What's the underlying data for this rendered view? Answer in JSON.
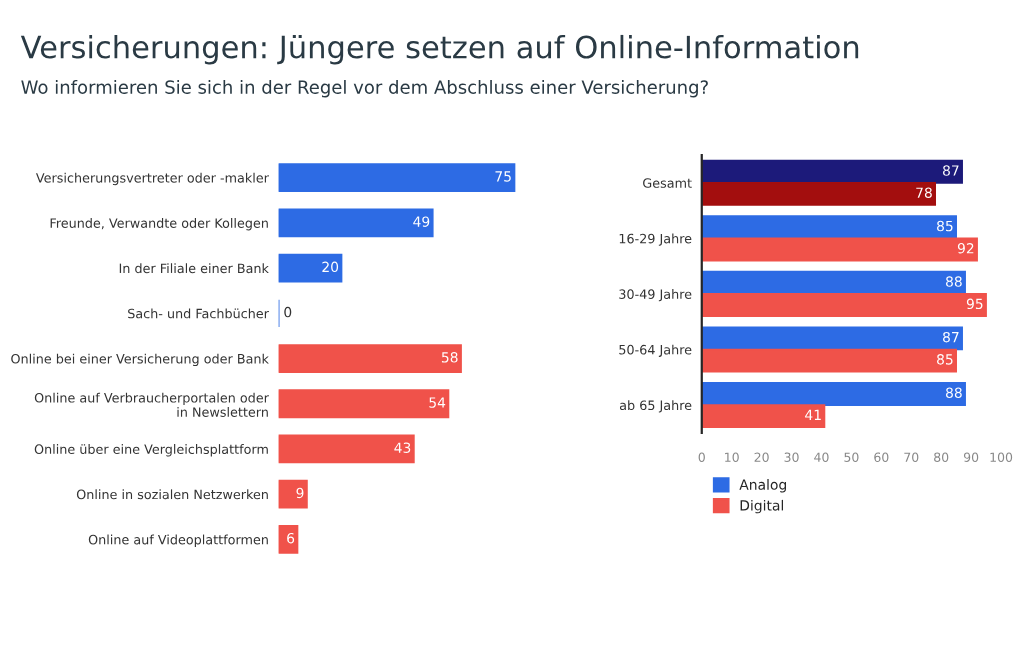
{
  "chart_data": [
    {
      "type": "bar",
      "orientation": "horizontal",
      "title": "Versicherungen: Jüngere setzen auf Online-Information",
      "subtitle": "Wo informieren Sie sich in der Regel vor dem Abschluss einer Versicherung?",
      "categories": [
        "Versicherungsvertreter oder -makler",
        "Freunde, Verwandte oder Kollegen",
        "In der Filiale einer Bank",
        "Sach- und Fachbücher",
        "Online bei einer Versicherung oder Bank",
        "Online auf Verbraucherportalen oder\nin Newslettern",
        "Online über eine Vergleichsplattform",
        "Online in sozialen Netzwerken",
        "Online auf Videoplattformen"
      ],
      "values": [
        75,
        49,
        20,
        0,
        58,
        54,
        43,
        9,
        6
      ],
      "colors": [
        "#2d6be4",
        "#2d6be4",
        "#2d6be4",
        "#2d6be4",
        "#f0524a",
        "#f0524a",
        "#f0524a",
        "#f0524a",
        "#f0524a"
      ],
      "data_labels": true,
      "grid": false,
      "legend": false
    },
    {
      "type": "bar",
      "orientation": "horizontal",
      "categories": [
        "Gesamt",
        "16-29 Jahre",
        "30-49 Jahre",
        "50-64 Jahre",
        "ab 65 Jahre"
      ],
      "series": [
        {
          "name": "Analog",
          "color": "#2d6be4",
          "colors": [
            "#1c1a7a",
            "#2d6be4",
            "#2d6be4",
            "#2d6be4",
            "#2d6be4"
          ],
          "values": [
            87,
            85,
            88,
            87,
            88
          ]
        },
        {
          "name": "Digital",
          "color": "#f0524a",
          "colors": [
            "#a30e0e",
            "#f0524a",
            "#f0524a",
            "#f0524a",
            "#f0524a"
          ],
          "values": [
            78,
            92,
            95,
            85,
            41
          ]
        }
      ],
      "xlim": [
        0,
        100
      ],
      "xticks": [
        0,
        10,
        20,
        30,
        40,
        50,
        60,
        70,
        80,
        90,
        100
      ],
      "data_labels": true,
      "grid": false,
      "legend": "bottom left"
    }
  ]
}
